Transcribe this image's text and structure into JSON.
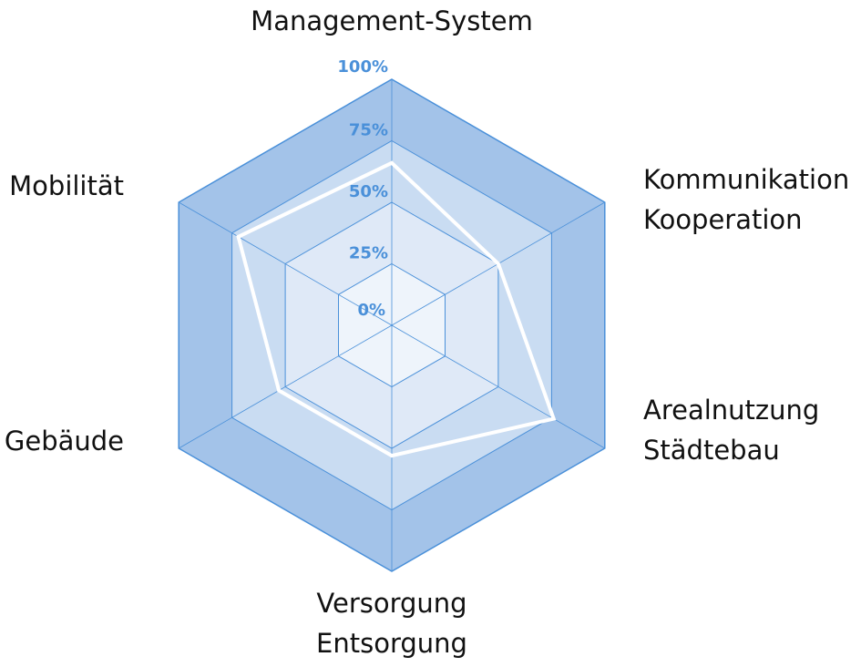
{
  "chart_data": {
    "type": "radar",
    "axes": [
      {
        "lines": [
          "Management-System"
        ]
      },
      {
        "lines": [
          "Kommunikation",
          "Kooperation"
        ]
      },
      {
        "lines": [
          "Arealnutzung",
          "Städtebau"
        ]
      },
      {
        "lines": [
          "Versorgung",
          "Entsorgung"
        ]
      },
      {
        "lines": [
          "Gebäude"
        ]
      },
      {
        "lines": [
          "Mobilität"
        ]
      }
    ],
    "ticks": [
      "0%",
      "25%",
      "50%",
      "75%",
      "100%"
    ],
    "tick_values": [
      0,
      25,
      50,
      75,
      100
    ],
    "range": [
      0,
      100
    ],
    "series": [
      {
        "values": [
          66,
          50,
          76,
          53,
          53,
          72
        ]
      }
    ],
    "colors": {
      "ring_fills": [
        "#eef4fb",
        "#dfe9f7",
        "#c9dcf2",
        "#a3c3e9"
      ],
      "grid_line": "#4a90d9",
      "tick_text": "#4a90d9",
      "series_line": "#ffffff"
    }
  }
}
